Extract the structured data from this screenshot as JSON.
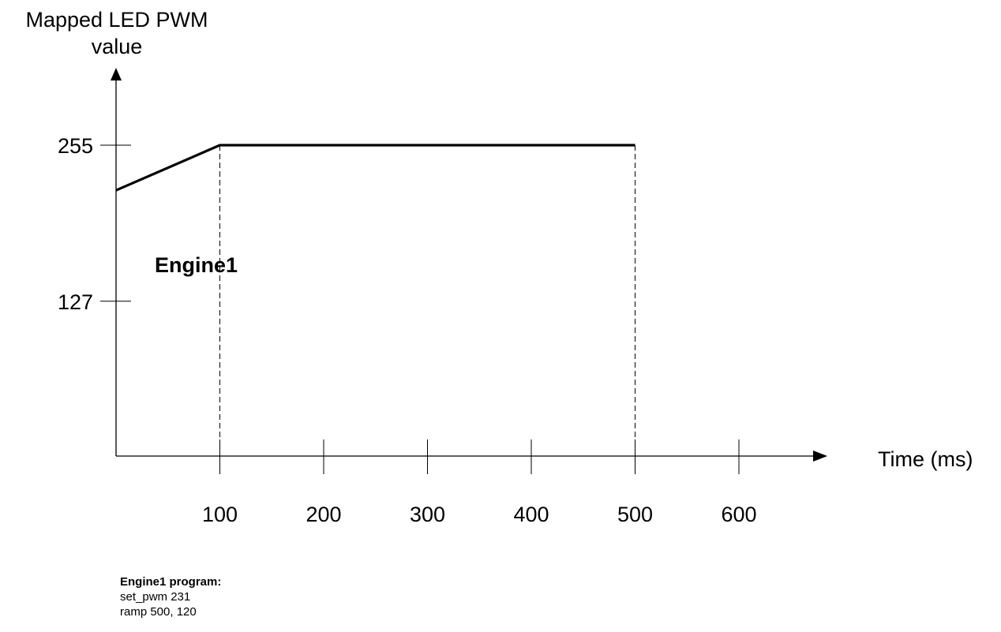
{
  "chart_data": {
    "type": "line",
    "ylabel": "Mapped LED PWM value",
    "xlabel": "Time (ms)",
    "x_ticks": [
      100,
      200,
      300,
      400,
      500,
      600
    ],
    "y_ticks": [
      127,
      255
    ],
    "series": [
      {
        "name": "Engine1",
        "x": [
          0,
          100,
          500
        ],
        "y": [
          218,
          255,
          255
        ]
      }
    ],
    "guides_x": [
      100,
      500
    ],
    "grid": false
  },
  "program": {
    "title": "Engine1 program:",
    "lines": [
      "set_pwm 231",
      "ramp 500, 120"
    ]
  }
}
